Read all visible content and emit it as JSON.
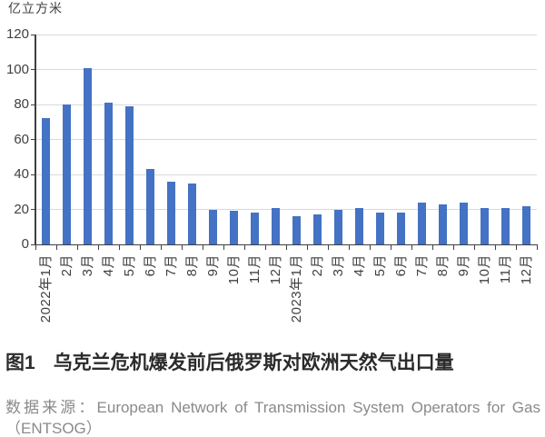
{
  "chart_data": {
    "type": "bar",
    "unit_label": "亿立方米",
    "categories": [
      "2022年1月",
      "2月",
      "3月",
      "4月",
      "5月",
      "6月",
      "7月",
      "8月",
      "9月",
      "10月",
      "11月",
      "12月",
      "2023年1月",
      "2月",
      "3月",
      "4月",
      "5月",
      "6月",
      "7月",
      "8月",
      "9月",
      "10月",
      "11月",
      "12月"
    ],
    "values": [
      72,
      80,
      101,
      81,
      79,
      43,
      36,
      35,
      20,
      19,
      18,
      21,
      16,
      17,
      20,
      21,
      18,
      18,
      24,
      23,
      24,
      21,
      21,
      22
    ],
    "title": "图1 乌克兰危机爆发前后俄罗斯对欧洲天然气出口量",
    "xlabel": "",
    "ylabel": "亿立方米",
    "ylim": [
      0,
      120
    ],
    "yticks": [
      0,
      20,
      40,
      60,
      80,
      100,
      120
    ],
    "grid": true,
    "legend": "none",
    "colors": {
      "bar": "#4472C4",
      "grid": "#d9d9d9",
      "axis": "#3f3f3f",
      "text": "#404040"
    }
  },
  "caption": {
    "figure_no": "图1",
    "text": "乌克兰危机爆发前后俄罗斯对欧洲天然气出口量"
  },
  "source": {
    "text": "数据来源：European Network of Transmission System Operators for Gas（ENTSOG）"
  }
}
